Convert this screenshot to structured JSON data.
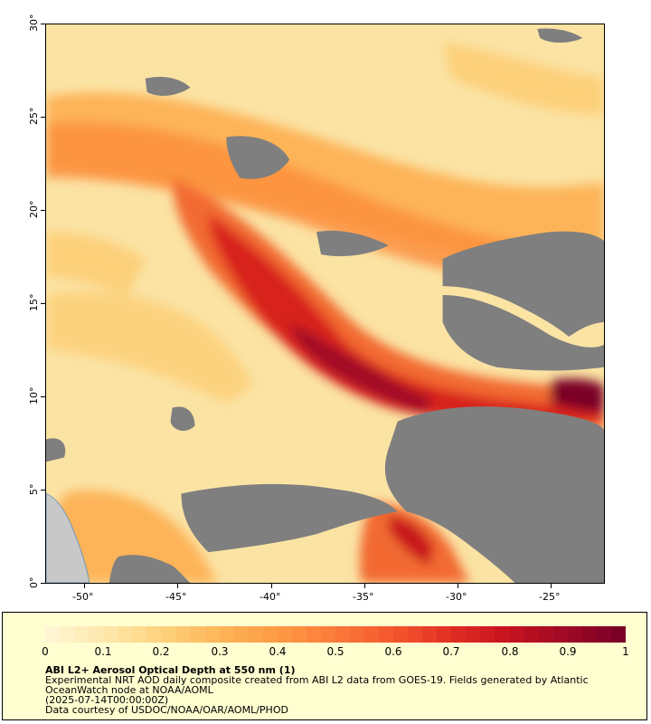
{
  "map": {
    "lon_ticks": [
      "-50°",
      "-45°",
      "-40°",
      "-35°",
      "-30°",
      "-25°"
    ],
    "lat_ticks": [
      "0°",
      "5°",
      "10°",
      "15°",
      "20°",
      "25°",
      "30°"
    ],
    "colors": {
      "nodata": "#7f7f7f",
      "land": "#c8c8c8",
      "background": "#fbe3a4"
    }
  },
  "legend": {
    "ticks": [
      "0",
      "0.1",
      "0.2",
      "0.3",
      "0.4",
      "0.5",
      "0.6",
      "0.7",
      "0.8",
      "0.9",
      "1"
    ],
    "colorbar_stops": [
      "#fff5d2",
      "#fde7a8",
      "#fdd07a",
      "#fdb458",
      "#fd9a44",
      "#fb7a3a",
      "#f4582e",
      "#e23024",
      "#c8141f",
      "#a20a25",
      "#7a0026"
    ],
    "title": "ABI L2+ Aerosol Optical Depth at 550 nm (1)",
    "line1": "Experimental NRT AOD daily composite created from ABI L2 data from GOES-19. Fields generated by Atlantic",
    "line2": "OceanWatch node at NOAA/AOML",
    "line3": "(2025-07-14T00:00:00Z)",
    "line4": "Data courtesy of USDOC/NOAA/OAR/AOML/PHOD"
  }
}
